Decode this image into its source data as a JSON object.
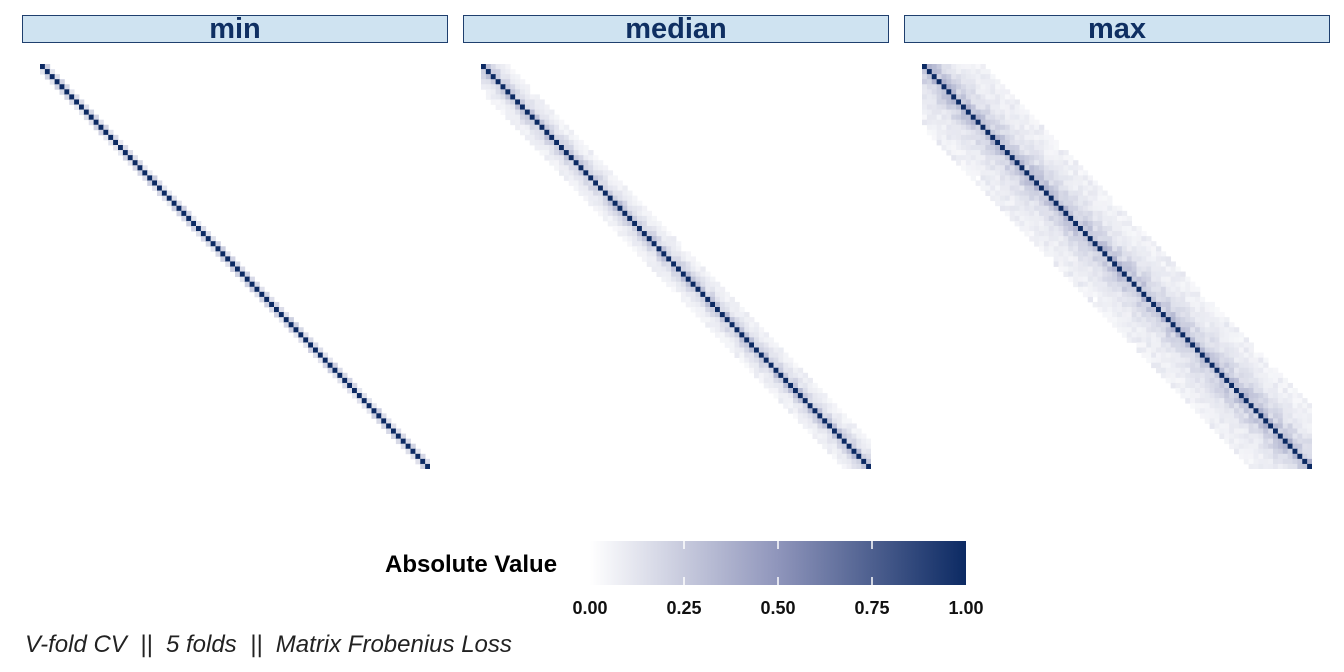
{
  "chart_data": {
    "type": "heatmap",
    "panels": [
      {
        "label": "min",
        "matrix_size": 80,
        "band_halfwidth": 1,
        "diag_value": 1.0,
        "near_value": 0.55,
        "far_value": 0.0
      },
      {
        "label": "median",
        "matrix_size": 80,
        "band_halfwidth": 5,
        "diag_value": 1.0,
        "near_value": 0.45,
        "far_value": 0.1
      },
      {
        "label": "max",
        "matrix_size": 80,
        "band_halfwidth": 12,
        "diag_value": 1.0,
        "near_value": 0.4,
        "far_value": 0.12
      }
    ],
    "legend": {
      "title": "Absolute Value",
      "ticks": [
        "0.00",
        "0.25",
        "0.50",
        "0.75",
        "1.00"
      ],
      "tick_values": [
        0,
        0.25,
        0.5,
        0.75,
        1.0
      ],
      "range": [
        0,
        1
      ],
      "low_color": "#ffffff",
      "high_color": "#0c2a63"
    },
    "caption": "V-fold CV  ||  5 folds  ||  Matrix Frobenius Loss"
  }
}
